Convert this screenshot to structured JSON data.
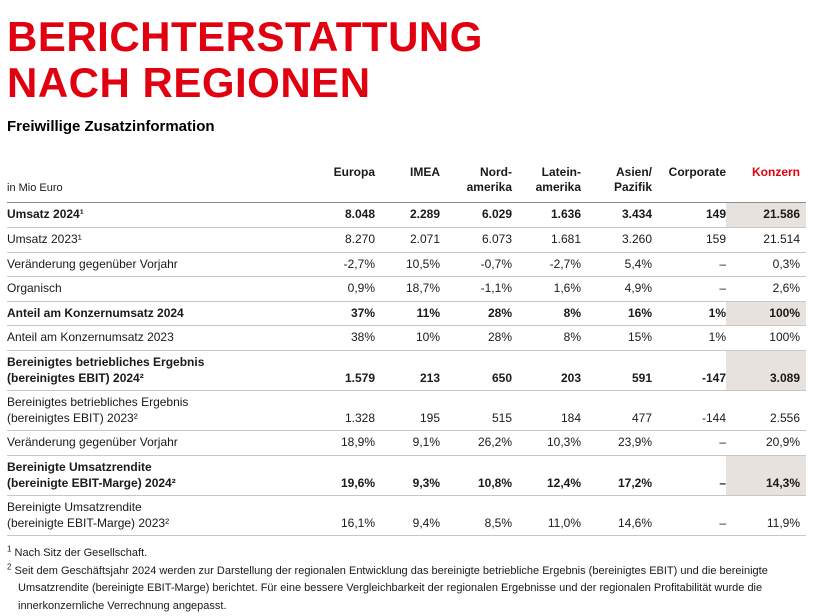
{
  "page": {
    "title": "BERICHTERSTATTUNG\nNACH REGIONEN",
    "subtitle": "Freiwillige Zusatzinformation"
  },
  "colors": {
    "accent": "#e1000f",
    "highlight": "#e8e2de",
    "rule": "#c9c6c4",
    "rule-strong": "#8d8d8d"
  },
  "table": {
    "unit": "in Mio Euro",
    "columns": [
      {
        "label": "Europa"
      },
      {
        "label": "IMEA"
      },
      {
        "label": "Nord-\namerika"
      },
      {
        "label": "Latein-\namerika"
      },
      {
        "label": "Asien/\nPazifik"
      },
      {
        "label": "Corporate"
      },
      {
        "label": "Konzern",
        "accent": true
      }
    ],
    "rows": [
      {
        "label": "Umsatz 2024¹",
        "bold": true,
        "highlight_konzern": true,
        "values": [
          "8.048",
          "2.289",
          "6.029",
          "1.636",
          "3.434",
          "149",
          "21.586"
        ]
      },
      {
        "label": "Umsatz 2023¹",
        "bold": false,
        "highlight_konzern": false,
        "values": [
          "8.270",
          "2.071",
          "6.073",
          "1.681",
          "3.260",
          "159",
          "21.514"
        ]
      },
      {
        "label": "Veränderung gegenüber Vorjahr",
        "bold": false,
        "highlight_konzern": false,
        "values": [
          "-2,7%",
          "10,5%",
          "-0,7%",
          "-2,7%",
          "5,4%",
          "–",
          "0,3%"
        ]
      },
      {
        "label": "Organisch",
        "bold": false,
        "highlight_konzern": false,
        "values": [
          "0,9%",
          "18,7%",
          "-1,1%",
          "1,6%",
          "4,9%",
          "–",
          "2,6%"
        ]
      },
      {
        "label": "Anteil am Konzernumsatz 2024",
        "bold": true,
        "highlight_konzern": true,
        "values": [
          "37%",
          "11%",
          "28%",
          "8%",
          "16%",
          "1%",
          "100%"
        ]
      },
      {
        "label": "Anteil am Konzernumsatz 2023",
        "bold": false,
        "highlight_konzern": false,
        "values": [
          "38%",
          "10%",
          "28%",
          "8%",
          "15%",
          "1%",
          "100%"
        ]
      },
      {
        "label": "Bereinigtes betriebliches Ergebnis\n(bereinigtes EBIT) 2024²",
        "bold": true,
        "highlight_konzern": true,
        "values": [
          "1.579",
          "213",
          "650",
          "203",
          "591",
          "-147",
          "3.089"
        ]
      },
      {
        "label": "Bereinigtes betriebliches Ergebnis\n(bereinigtes EBIT) 2023²",
        "bold": false,
        "highlight_konzern": false,
        "values": [
          "1.328",
          "195",
          "515",
          "184",
          "477",
          "-144",
          "2.556"
        ]
      },
      {
        "label": "Veränderung gegenüber Vorjahr",
        "bold": false,
        "highlight_konzern": false,
        "values": [
          "18,9%",
          "9,1%",
          "26,2%",
          "10,3%",
          "23,9%",
          "–",
          "20,9%"
        ]
      },
      {
        "label": "Bereinigte Umsatzrendite\n(bereinigte EBIT-Marge) 2024²",
        "bold": true,
        "highlight_konzern": true,
        "values": [
          "19,6%",
          "9,3%",
          "10,8%",
          "12,4%",
          "17,2%",
          "–",
          "14,3%"
        ]
      },
      {
        "label": "Bereinigte Umsatzrendite\n(bereinigte EBIT-Marge) 2023²",
        "bold": false,
        "highlight_konzern": false,
        "values": [
          "16,1%",
          "9,4%",
          "8,5%",
          "11,0%",
          "14,6%",
          "–",
          "11,9%"
        ]
      }
    ]
  },
  "footnotes": [
    {
      "marker": "1",
      "text": "Nach Sitz der Gesellschaft."
    },
    {
      "marker": "2",
      "text": "Seit dem Geschäftsjahr 2024 werden zur Darstellung der regionalen Entwicklung das bereinigte betriebliche Ergebnis (bereinigtes EBIT) und die bereinigte Umsatzrendite (bereinigte EBIT-Marge) berichtet. Für eine bessere Vergleichbarkeit der regionalen Ergebnisse und der regionalen Profitabilität wurde die innerkonzernliche Verrechnung angepasst."
    }
  ]
}
